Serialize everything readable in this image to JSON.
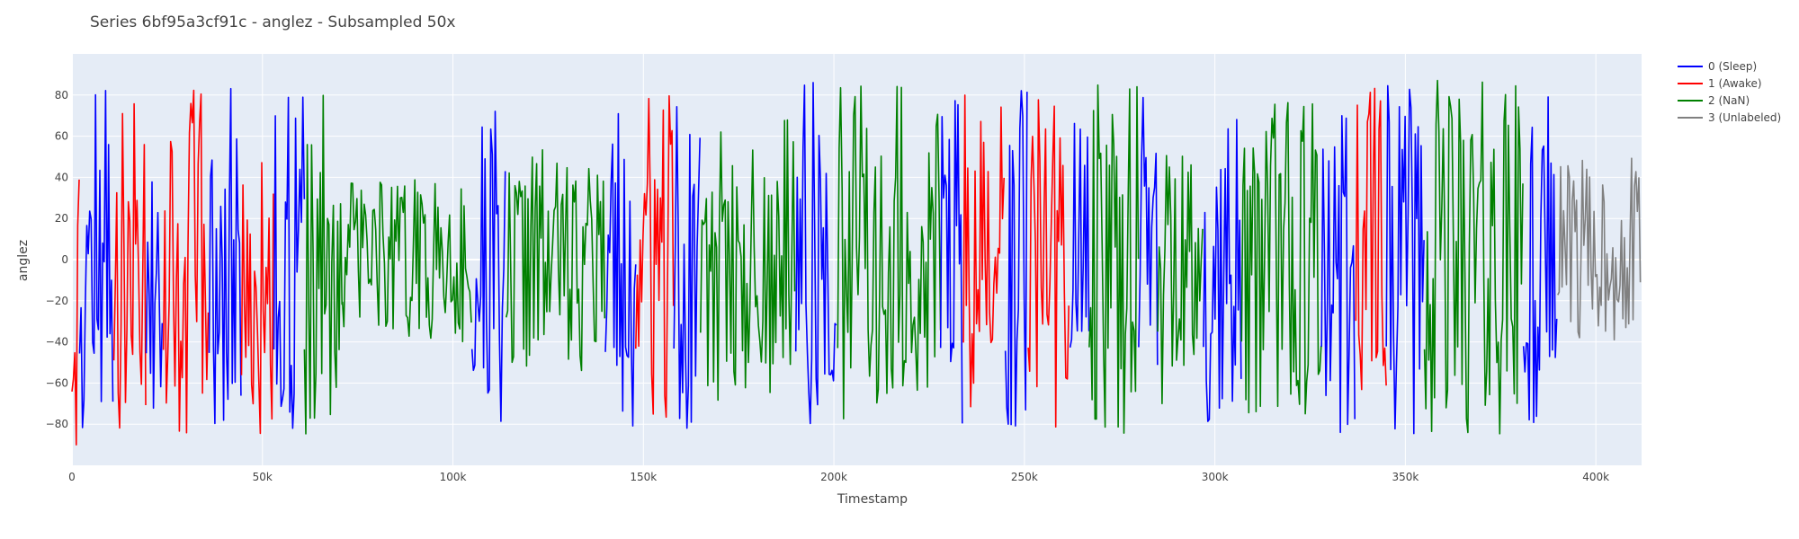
{
  "chart_data": {
    "type": "line",
    "title": "Series 6bf95a3cf91c - anglez - Subsampled 50x",
    "xlabel": "Timestamp",
    "ylabel": "anglez",
    "xlim": [
      0,
      412000
    ],
    "ylim": [
      -100,
      100
    ],
    "x_ticks": [
      {
        "value": 0,
        "label": "0"
      },
      {
        "value": 50000,
        "label": "50k"
      },
      {
        "value": 100000,
        "label": "100k"
      },
      {
        "value": 150000,
        "label": "150k"
      },
      {
        "value": 200000,
        "label": "200k"
      },
      {
        "value": 250000,
        "label": "250k"
      },
      {
        "value": 300000,
        "label": "300k"
      },
      {
        "value": 350000,
        "label": "350k"
      },
      {
        "value": 400000,
        "label": "400k"
      }
    ],
    "y_ticks": [
      {
        "value": 80,
        "label": "80"
      },
      {
        "value": 60,
        "label": "60"
      },
      {
        "value": 40,
        "label": "40"
      },
      {
        "value": 20,
        "label": "20"
      },
      {
        "value": 0,
        "label": "0"
      },
      {
        "value": -20,
        "label": "−20"
      },
      {
        "value": -40,
        "label": "−40"
      },
      {
        "value": -60,
        "label": "−60"
      },
      {
        "value": -80,
        "label": "−80"
      }
    ],
    "grid": true,
    "legend_position": "top-right",
    "plot_background": "#E5ECF6",
    "series": [
      {
        "name": "0 (Sleep)",
        "color": "#0000FF"
      },
      {
        "name": "1 (Awake)",
        "color": "#FF0000"
      },
      {
        "name": "2 (NaN)",
        "color": "#008000"
      },
      {
        "name": "3 (Unlabeled)",
        "color": "#808080"
      }
    ],
    "segments": [
      {
        "series": 1,
        "x_start": 0,
        "x_end": 2000,
        "amplitude": 85,
        "bias": -20,
        "seed": 11
      },
      {
        "series": 0,
        "x_start": 2000,
        "x_end": 11000,
        "amplitude": 88,
        "bias": 0,
        "seed": 12
      },
      {
        "series": 1,
        "x_start": 11000,
        "x_end": 19500,
        "amplitude": 85,
        "bias": -5,
        "seed": 13
      },
      {
        "series": 0,
        "x_start": 19500,
        "x_end": 24000,
        "amplitude": 88,
        "bias": 0,
        "seed": 14
      },
      {
        "series": 1,
        "x_start": 24000,
        "x_end": 36000,
        "amplitude": 85,
        "bias": 0,
        "seed": 15
      },
      {
        "series": 0,
        "x_start": 36000,
        "x_end": 44500,
        "amplitude": 88,
        "bias": 0,
        "seed": 16
      },
      {
        "series": 1,
        "x_start": 44500,
        "x_end": 53000,
        "amplitude": 80,
        "bias": -15,
        "seed": 17
      },
      {
        "series": 0,
        "x_start": 53000,
        "x_end": 61000,
        "amplitude": 85,
        "bias": 0,
        "seed": 18
      },
      {
        "series": 2,
        "x_start": 61000,
        "x_end": 71000,
        "amplitude": 85,
        "bias": 0,
        "seed": 19
      },
      {
        "series": 2,
        "x_start": 71000,
        "x_end": 105000,
        "amplitude": 40,
        "bias": 0,
        "seed": 20
      },
      {
        "series": 0,
        "x_start": 105000,
        "x_end": 114000,
        "amplitude": 85,
        "bias": 0,
        "seed": 21
      },
      {
        "series": 2,
        "x_start": 114000,
        "x_end": 140000,
        "amplitude": 55,
        "bias": 0,
        "seed": 22
      },
      {
        "series": 0,
        "x_start": 140000,
        "x_end": 148000,
        "amplitude": 88,
        "bias": 0,
        "seed": 23
      },
      {
        "series": 1,
        "x_start": 148000,
        "x_end": 158000,
        "amplitude": 85,
        "bias": 0,
        "seed": 24
      },
      {
        "series": 0,
        "x_start": 158000,
        "x_end": 165000,
        "amplitude": 85,
        "bias": 0,
        "seed": 25
      },
      {
        "series": 2,
        "x_start": 165000,
        "x_end": 190000,
        "amplitude": 70,
        "bias": 0,
        "seed": 26
      },
      {
        "series": 0,
        "x_start": 190000,
        "x_end": 201000,
        "amplitude": 88,
        "bias": 0,
        "seed": 27
      },
      {
        "series": 2,
        "x_start": 201000,
        "x_end": 228000,
        "amplitude": 85,
        "bias": 0,
        "seed": 28
      },
      {
        "series": 0,
        "x_start": 228000,
        "x_end": 234000,
        "amplitude": 85,
        "bias": 0,
        "seed": 29
      },
      {
        "series": 1,
        "x_start": 234000,
        "x_end": 245000,
        "amplitude": 80,
        "bias": 0,
        "seed": 30
      },
      {
        "series": 0,
        "x_start": 245000,
        "x_end": 251000,
        "amplitude": 88,
        "bias": 0,
        "seed": 31
      },
      {
        "series": 1,
        "x_start": 251000,
        "x_end": 262000,
        "amplitude": 85,
        "bias": 0,
        "seed": 32
      },
      {
        "series": 0,
        "x_start": 262000,
        "x_end": 267000,
        "amplitude": 85,
        "bias": 0,
        "seed": 33
      },
      {
        "series": 2,
        "x_start": 267000,
        "x_end": 280000,
        "amplitude": 85,
        "bias": 0,
        "seed": 34
      },
      {
        "series": 0,
        "x_start": 280000,
        "x_end": 285000,
        "amplitude": 85,
        "bias": 0,
        "seed": 35
      },
      {
        "series": 2,
        "x_start": 285000,
        "x_end": 297000,
        "amplitude": 70,
        "bias": 0,
        "seed": 36
      },
      {
        "series": 0,
        "x_start": 297000,
        "x_end": 307000,
        "amplitude": 85,
        "bias": 0,
        "seed": 37
      },
      {
        "series": 2,
        "x_start": 307000,
        "x_end": 328000,
        "amplitude": 80,
        "bias": 0,
        "seed": 38
      },
      {
        "series": 0,
        "x_start": 328000,
        "x_end": 337000,
        "amplitude": 85,
        "bias": 0,
        "seed": 39
      },
      {
        "series": 1,
        "x_start": 337000,
        "x_end": 345000,
        "amplitude": 80,
        "bias": 10,
        "seed": 40
      },
      {
        "series": 0,
        "x_start": 345000,
        "x_end": 355000,
        "amplitude": 85,
        "bias": 0,
        "seed": 41
      },
      {
        "series": 2,
        "x_start": 355000,
        "x_end": 381000,
        "amplitude": 88,
        "bias": 0,
        "seed": 42
      },
      {
        "series": 0,
        "x_start": 381000,
        "x_end": 390000,
        "amplitude": 85,
        "bias": 0,
        "seed": 43
      },
      {
        "series": 3,
        "x_start": 390000,
        "x_end": 412000,
        "amplitude": 45,
        "bias": 5,
        "seed": 44
      }
    ]
  }
}
